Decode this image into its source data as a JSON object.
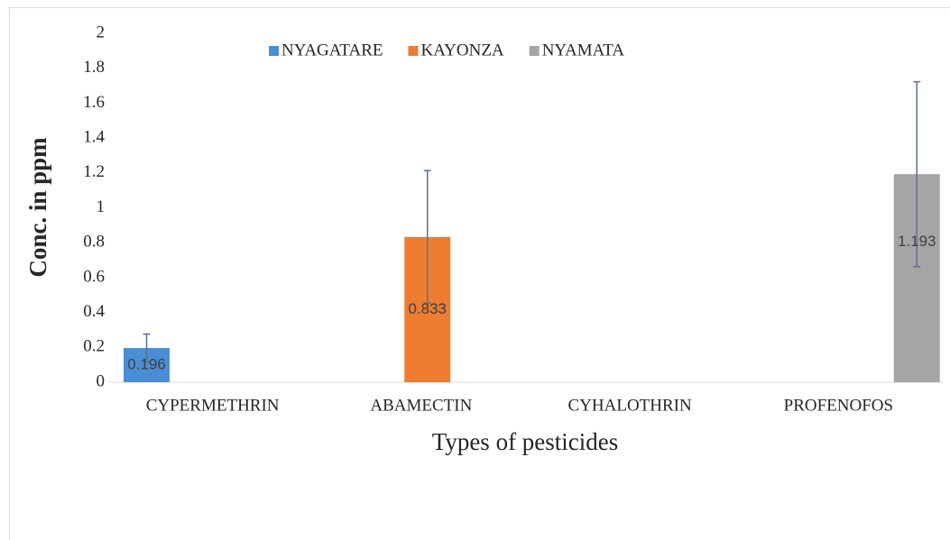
{
  "chart_data": {
    "type": "bar",
    "categories": [
      "CYPERMETHRIN",
      "ABAMECTIN",
      "CYHALOTHRIN",
      "PROFENOFOS"
    ],
    "series": [
      {
        "name": "NYAGATARE",
        "color": "#4a8fd6",
        "values": [
          0.196,
          null,
          null,
          null
        ],
        "errors": [
          0.08,
          null,
          null,
          null
        ]
      },
      {
        "name": "KAYONZA",
        "color": "#ee7d31",
        "values": [
          null,
          0.833,
          null,
          null
        ],
        "errors": [
          null,
          0.38,
          null,
          null
        ]
      },
      {
        "name": "NYAMATA",
        "color": "#a5a5a5",
        "values": [
          null,
          null,
          null,
          1.193
        ],
        "errors": [
          null,
          null,
          null,
          0.53
        ]
      }
    ],
    "ylim": [
      0,
      2
    ],
    "yticks": [
      0,
      0.2,
      0.4,
      0.6,
      0.8,
      1,
      1.2,
      1.4,
      1.6,
      1.8,
      2
    ],
    "y_label": "Conc. in ppm",
    "x_label": "Types of pesticides",
    "legend": "top",
    "grid": false
  }
}
